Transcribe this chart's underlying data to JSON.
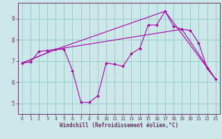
{
  "xlabel": "Windchill (Refroidissement éolien,°C)",
  "bg_color": "#cce8e8",
  "line_color": "#aa00aa",
  "grid_color": "#99cccc",
  "spine_color": "#663366",
  "xlim": [
    -0.5,
    23.5
  ],
  "ylim": [
    4.5,
    9.75
  ],
  "xticks": [
    0,
    1,
    2,
    3,
    4,
    5,
    6,
    7,
    8,
    9,
    10,
    11,
    12,
    13,
    14,
    15,
    16,
    17,
    18,
    19,
    20,
    21,
    22,
    23
  ],
  "yticks": [
    5,
    6,
    7,
    8,
    9
  ],
  "line1_x": [
    0,
    1,
    2,
    3,
    4,
    5,
    6,
    7,
    8,
    9,
    10,
    11,
    12,
    13,
    14,
    15,
    16,
    17,
    18,
    19,
    20,
    21,
    22,
    23
  ],
  "line1_y": [
    6.9,
    6.95,
    7.45,
    7.5,
    7.55,
    7.55,
    6.55,
    5.05,
    5.05,
    5.35,
    6.9,
    6.85,
    6.75,
    7.35,
    7.6,
    8.7,
    8.7,
    9.35,
    8.65,
    8.5,
    8.45,
    7.85,
    6.65,
    6.15
  ],
  "line2_x": [
    0,
    4,
    19,
    23
  ],
  "line2_y": [
    6.9,
    7.55,
    8.5,
    6.15
  ],
  "line3_x": [
    0,
    4,
    17,
    23
  ],
  "line3_y": [
    6.9,
    7.55,
    9.35,
    6.15
  ]
}
